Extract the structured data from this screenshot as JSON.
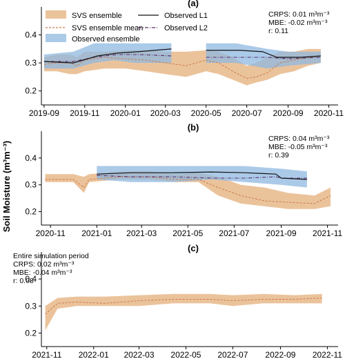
{
  "chart_data": {
    "type": "area",
    "ylabel": "Soil Moisture (m³m⁻³)",
    "legend": {
      "placement": "top-left",
      "entries": [
        {
          "key": "svs_ens",
          "label": "SVS ensemble",
          "color": "#e8b98a",
          "kind": "band"
        },
        {
          "key": "svs_mean",
          "label": "SVS ensemble mean",
          "color": "#c97a4a",
          "kind": "dash"
        },
        {
          "key": "obs_ens",
          "label": "Observed ensemble",
          "color": "#8fb8e0",
          "kind": "band"
        },
        {
          "key": "obs_l1",
          "label": "Observed L1",
          "color": "#111111",
          "kind": "line"
        },
        {
          "key": "obs_l2",
          "label": "Observed L2",
          "color": "#5a2a6a",
          "kind": "dashdot"
        }
      ]
    },
    "colors": {
      "svs_band": "#e8b98a",
      "svs_mean": "#c97a4a",
      "obs_band": "#8fb8e0",
      "obs_l1": "#111111",
      "obs_l2": "#5a2a6a"
    },
    "panels": [
      {
        "label": "(a)",
        "xlim": [
          "2019-08-28",
          "2020-11-15"
        ],
        "ylim": [
          0.15,
          0.5
        ],
        "yticks": [
          0.2,
          0.3,
          0.4
        ],
        "xticks": [
          "2019-09",
          "2019-11",
          "2020-01",
          "2020-03",
          "2020-05",
          "2020-07",
          "2020-09",
          "2020-11"
        ],
        "stats": [
          "CRPS: 0.01 m³m⁻³",
          "MBE: -0.02 m³m⁻³",
          "r:  0.11"
        ],
        "svs": [
          {
            "x": "2019-09-01",
            "lo": 0.27,
            "mean": 0.295,
            "hi": 0.32
          },
          {
            "x": "2019-09-20",
            "lo": 0.27,
            "mean": 0.3,
            "hi": 0.33
          },
          {
            "x": "2019-10-10",
            "lo": 0.26,
            "mean": 0.3,
            "hi": 0.33
          },
          {
            "x": "2019-10-20",
            "lo": 0.26,
            "mean": 0.29,
            "hi": 0.32
          },
          {
            "x": "2019-11-01",
            "lo": 0.27,
            "mean": 0.31,
            "hi": 0.34
          },
          {
            "x": "2019-12-01",
            "lo": 0.28,
            "mean": 0.32,
            "hi": 0.34
          },
          {
            "x": "2020-01-01",
            "lo": 0.28,
            "mean": 0.315,
            "hi": 0.345
          },
          {
            "x": "2020-02-01",
            "lo": 0.27,
            "mean": 0.31,
            "hi": 0.345
          },
          {
            "x": "2020-03-01",
            "lo": 0.26,
            "mean": 0.3,
            "hi": 0.34
          },
          {
            "x": "2020-04-01",
            "lo": 0.25,
            "mean": 0.29,
            "hi": 0.34
          },
          {
            "x": "2020-05-01",
            "lo": 0.27,
            "mean": 0.31,
            "hi": 0.345
          },
          {
            "x": "2020-05-20",
            "lo": 0.26,
            "mean": 0.3,
            "hi": 0.34
          },
          {
            "x": "2020-06-10",
            "lo": 0.24,
            "mean": 0.27,
            "hi": 0.32
          },
          {
            "x": "2020-07-01",
            "lo": 0.22,
            "mean": 0.245,
            "hi": 0.29
          },
          {
            "x": "2020-07-15",
            "lo": 0.23,
            "mean": 0.25,
            "hi": 0.3
          },
          {
            "x": "2020-08-01",
            "lo": 0.24,
            "mean": 0.265,
            "hi": 0.32
          },
          {
            "x": "2020-08-20",
            "lo": 0.26,
            "mean": 0.3,
            "hi": 0.34
          },
          {
            "x": "2020-09-10",
            "lo": 0.27,
            "mean": 0.31,
            "hi": 0.34
          },
          {
            "x": "2020-10-01",
            "lo": 0.29,
            "mean": 0.32,
            "hi": 0.35
          },
          {
            "x": "2020-10-20",
            "lo": 0.3,
            "mean": 0.325,
            "hi": 0.35
          }
        ],
        "obs_band": [
          {
            "x": "2019-09-01",
            "lo": 0.28,
            "hi": 0.33
          },
          {
            "x": "2019-10-15",
            "lo": 0.28,
            "hi": 0.34
          },
          {
            "x": "2019-11-15",
            "lo": 0.3,
            "hi": 0.37
          },
          {
            "x": "2019-12-15",
            "lo": 0.31,
            "hi": 0.37
          },
          {
            "x": "2020-01-15",
            "lo": 0.3,
            "hi": 0.37
          },
          {
            "x": "2020-03-10",
            "lo": 0.3,
            "hi": 0.37
          },
          {
            "x": "2020-05-01",
            "gap": true
          },
          {
            "x": "2020-05-01",
            "lo": 0.3,
            "hi": 0.37
          },
          {
            "x": "2020-06-15",
            "lo": 0.3,
            "hi": 0.37
          },
          {
            "x": "2020-08-01",
            "lo": 0.28,
            "hi": 0.35
          },
          {
            "x": "2020-09-01",
            "lo": 0.29,
            "hi": 0.34
          },
          {
            "x": "2020-10-20",
            "lo": 0.3,
            "hi": 0.34
          }
        ],
        "obs_l1": [
          {
            "x": "2019-09-01",
            "y": 0.305
          },
          {
            "x": "2019-10-15",
            "y": 0.3
          },
          {
            "x": "2019-11-20",
            "y": 0.325
          },
          {
            "x": "2019-12-20",
            "y": 0.335
          },
          {
            "x": "2020-01-20",
            "y": 0.34
          },
          {
            "x": "2020-03-10",
            "y": 0.35
          },
          {
            "x": "2020-05-01",
            "gap": true
          },
          {
            "x": "2020-05-01",
            "y": 0.345
          },
          {
            "x": "2020-06-20",
            "y": 0.345
          },
          {
            "x": "2020-07-25",
            "y": 0.34
          },
          {
            "x": "2020-08-15",
            "y": 0.32
          },
          {
            "x": "2020-09-20",
            "y": 0.32
          },
          {
            "x": "2020-10-20",
            "y": 0.325
          }
        ],
        "obs_l2": [
          {
            "x": "2019-09-01",
            "y": 0.305
          },
          {
            "x": "2019-10-15",
            "y": 0.305
          },
          {
            "x": "2019-11-15",
            "y": 0.32
          },
          {
            "x": "2019-12-20",
            "y": 0.33
          },
          {
            "x": "2020-01-20",
            "y": 0.33
          },
          {
            "x": "2020-03-10",
            "y": 0.325
          },
          {
            "x": "2020-05-01",
            "gap": true
          },
          {
            "x": "2020-05-01",
            "y": 0.32
          },
          {
            "x": "2020-06-20",
            "y": 0.32
          },
          {
            "x": "2020-08-01",
            "y": 0.32
          },
          {
            "x": "2020-09-01",
            "y": 0.315
          },
          {
            "x": "2020-10-20",
            "y": 0.32
          }
        ]
      },
      {
        "label": "(b)",
        "xlim": [
          "2020-10-20",
          "2021-11-15"
        ],
        "ylim": [
          0.15,
          0.5
        ],
        "yticks": [
          0.2,
          0.3,
          0.4
        ],
        "xticks": [
          "2020-11",
          "2021-01",
          "2021-03",
          "2021-05",
          "2021-07",
          "2021-09",
          "2021-11"
        ],
        "stats": [
          "CRPS: 0.04 m³m⁻³",
          "MBE: -0.05 m³m⁻³",
          "r:  0.39"
        ],
        "svs": [
          {
            "x": "2020-10-25",
            "lo": 0.31,
            "mean": 0.32,
            "hi": 0.34
          },
          {
            "x": "2020-12-01",
            "lo": 0.31,
            "mean": 0.32,
            "hi": 0.34
          },
          {
            "x": "2020-12-15",
            "lo": 0.27,
            "mean": 0.29,
            "hi": 0.33
          },
          {
            "x": "2020-12-22",
            "lo": 0.31,
            "mean": 0.32,
            "hi": 0.34
          },
          {
            "x": "2021-02-01",
            "lo": 0.32,
            "mean": 0.33,
            "hi": 0.35
          },
          {
            "x": "2021-03-10",
            "lo": 0.32,
            "mean": 0.33,
            "hi": 0.35
          },
          {
            "x": "2021-04-15",
            "lo": 0.31,
            "mean": 0.32,
            "hi": 0.34
          },
          {
            "x": "2021-05-15",
            "lo": 0.31,
            "mean": 0.32,
            "hi": 0.345
          },
          {
            "x": "2021-06-10",
            "lo": 0.26,
            "mean": 0.29,
            "hi": 0.33
          },
          {
            "x": "2021-07-10",
            "lo": 0.23,
            "mean": 0.26,
            "hi": 0.3
          },
          {
            "x": "2021-08-10",
            "lo": 0.22,
            "mean": 0.24,
            "hi": 0.29
          },
          {
            "x": "2021-09-10",
            "lo": 0.21,
            "mean": 0.235,
            "hi": 0.27
          },
          {
            "x": "2021-10-15",
            "lo": 0.21,
            "mean": 0.23,
            "hi": 0.26
          },
          {
            "x": "2021-11-05",
            "lo": 0.22,
            "mean": 0.26,
            "hi": 0.29
          }
        ],
        "obs_band": [
          {
            "x": "2021-01-01",
            "lo": 0.32,
            "hi": 0.37
          },
          {
            "x": "2021-02-15",
            "lo": 0.31,
            "hi": 0.37
          },
          {
            "x": "2021-04-10",
            "lo": 0.31,
            "hi": 0.37
          },
          {
            "x": "2021-06-01",
            "lo": 0.32,
            "hi": 0.37
          },
          {
            "x": "2021-07-15",
            "lo": 0.31,
            "hi": 0.37
          },
          {
            "x": "2021-09-01",
            "lo": 0.3,
            "hi": 0.36
          },
          {
            "x": "2021-10-05",
            "lo": 0.29,
            "hi": 0.35
          }
        ],
        "obs_l1": [
          {
            "x": "2021-01-01",
            "y": 0.34
          },
          {
            "x": "2021-02-15",
            "y": 0.345
          },
          {
            "x": "2021-04-10",
            "y": 0.345
          },
          {
            "x": "2021-06-01",
            "y": 0.348
          },
          {
            "x": "2021-07-15",
            "y": 0.345
          },
          {
            "x": "2021-08-25",
            "y": 0.34
          },
          {
            "x": "2021-09-01",
            "y": 0.325
          },
          {
            "x": "2021-10-05",
            "y": 0.32
          }
        ],
        "obs_l2": [
          {
            "x": "2021-01-01",
            "y": 0.335
          },
          {
            "x": "2021-02-15",
            "y": 0.33
          },
          {
            "x": "2021-04-10",
            "y": 0.33
          },
          {
            "x": "2021-06-01",
            "y": 0.325
          },
          {
            "x": "2021-07-15",
            "y": 0.325
          },
          {
            "x": "2021-08-25",
            "y": 0.33
          },
          {
            "x": "2021-09-01",
            "y": 0.325
          },
          {
            "x": "2021-10-05",
            "y": 0.325
          }
        ]
      },
      {
        "label": "(c)",
        "xlim": [
          "2021-10-25",
          "2022-11-15"
        ],
        "ylim": [
          0.15,
          0.5
        ],
        "yticks": [
          0.2,
          0.3,
          0.4
        ],
        "xticks": [
          "2021-11",
          "2022-01",
          "2022-03",
          "2022-05",
          "2022-07",
          "2022-09",
          "2022-11"
        ],
        "stats": [
          "Entire simulation period",
          "CRPS: 0.02 m³m⁻³",
          "MBE: -0.04 m³m⁻³",
          "r:  0.08"
        ],
        "svs": [
          {
            "x": "2021-10-30",
            "lo": 0.21,
            "mean": 0.27,
            "hi": 0.3
          },
          {
            "x": "2021-11-15",
            "lo": 0.29,
            "mean": 0.31,
            "hi": 0.33
          },
          {
            "x": "2021-12-10",
            "lo": 0.3,
            "mean": 0.315,
            "hi": 0.335
          },
          {
            "x": "2022-01-15",
            "lo": 0.3,
            "mean": 0.31,
            "hi": 0.335
          },
          {
            "x": "2022-03-01",
            "lo": 0.3,
            "mean": 0.32,
            "hi": 0.34
          },
          {
            "x": "2022-04-15",
            "lo": 0.31,
            "mean": 0.325,
            "hi": 0.345
          },
          {
            "x": "2022-06-01",
            "lo": 0.31,
            "mean": 0.325,
            "hi": 0.345
          },
          {
            "x": "2022-07-01",
            "lo": 0.3,
            "mean": 0.32,
            "hi": 0.34
          },
          {
            "x": "2022-08-10",
            "lo": 0.31,
            "mean": 0.325,
            "hi": 0.345
          },
          {
            "x": "2022-09-20",
            "lo": 0.31,
            "mean": 0.325,
            "hi": 0.34
          },
          {
            "x": "2022-10-25",
            "lo": 0.31,
            "mean": 0.33,
            "hi": 0.345
          }
        ],
        "obs_band": [],
        "obs_l1": [],
        "obs_l2": []
      }
    ]
  }
}
